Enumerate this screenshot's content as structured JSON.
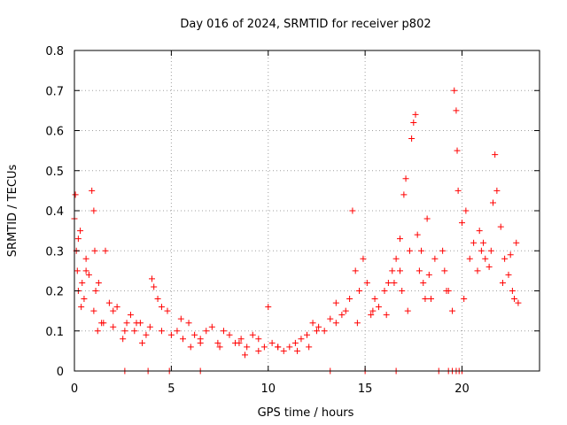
{
  "chart_data": {
    "type": "scatter",
    "title": "Day 016 of 2024, SRMTID for receiver p802",
    "xlabel": "GPS time / hours",
    "ylabel": "SRMTID / TECUs",
    "xlim": [
      0,
      24
    ],
    "ylim": [
      0,
      0.8
    ],
    "x_ticks": [
      0,
      5,
      10,
      15,
      20
    ],
    "x_tick_labels": [
      "0",
      "5",
      "10",
      "15",
      "20"
    ],
    "y_ticks": [
      0,
      0.1,
      0.2,
      0.3,
      0.4,
      0.5,
      0.6,
      0.7,
      0.8
    ],
    "y_tick_labels": [
      "0",
      "0.1",
      "0.2",
      "0.3",
      "0.4",
      "0.5",
      "0.6",
      "0.7",
      "0.8"
    ],
    "grid": true,
    "marker": "plus",
    "series": [
      {
        "name": "SRMTID",
        "color": "#ff0000",
        "x": [
          0.0,
          0.05,
          0.1,
          0.15,
          0.2,
          0.3,
          0.4,
          0.5,
          0.6,
          0.75,
          0.9,
          1.0,
          1.05,
          1.1,
          1.2,
          1.4,
          1.6,
          1.8,
          2.0,
          2.2,
          2.5,
          2.7,
          2.9,
          3.1,
          3.4,
          3.7,
          3.9,
          4.0,
          4.1,
          4.3,
          4.5,
          4.8,
          5.0,
          5.3,
          5.6,
          5.9,
          6.2,
          6.5,
          6.8,
          7.1,
          7.4,
          7.7,
          8.0,
          8.3,
          8.6,
          8.9,
          9.2,
          9.5,
          9.8,
          10.0,
          10.2,
          10.5,
          10.8,
          11.1,
          11.4,
          11.7,
          12.0,
          12.3,
          12.6,
          12.9,
          13.2,
          13.5,
          13.8,
          14.0,
          14.2,
          14.35,
          14.5,
          14.7,
          14.9,
          15.1,
          15.3,
          15.5,
          15.7,
          16.0,
          16.2,
          16.4,
          16.6,
          16.8,
          16.9,
          17.0,
          17.1,
          17.3,
          17.4,
          17.5,
          17.6,
          17.7,
          17.8,
          17.9,
          18.0,
          18.1,
          18.3,
          18.6,
          19.0,
          19.1,
          19.3,
          19.5,
          19.6,
          19.7,
          19.75,
          19.8,
          20.0,
          20.2,
          20.4,
          20.6,
          20.8,
          21.0,
          21.2,
          21.4,
          21.6,
          21.7,
          21.8,
          22.0,
          22.2,
          22.4,
          22.6,
          22.8,
          22.9,
          0.2,
          0.6,
          1.0,
          1.5,
          2.0,
          2.6,
          3.5,
          4.5,
          5.5,
          6.5,
          7.5,
          8.5,
          9.5,
          10.5,
          11.5,
          12.5,
          13.5,
          14.6,
          15.4,
          16.1,
          16.8,
          17.2,
          18.2,
          19.2,
          20.1,
          20.9,
          21.5,
          22.1,
          22.7,
          0.35,
          1.25,
          3.2,
          6.0,
          8.8,
          12.1,
          16.5,
          18.4,
          21.1,
          22.5,
          2.6,
          3.8,
          4.9,
          6.5,
          13.2,
          15.0,
          16.6,
          18.8,
          19.3,
          19.5,
          19.7,
          19.85,
          20.0
        ],
        "y": [
          0.38,
          0.44,
          0.3,
          0.25,
          0.2,
          0.35,
          0.22,
          0.18,
          0.28,
          0.24,
          0.45,
          0.4,
          0.3,
          0.2,
          0.1,
          0.12,
          0.3,
          0.17,
          0.15,
          0.16,
          0.08,
          0.12,
          0.14,
          0.1,
          0.12,
          0.09,
          0.11,
          0.23,
          0.21,
          0.18,
          0.16,
          0.15,
          0.09,
          0.1,
          0.08,
          0.12,
          0.09,
          0.08,
          0.1,
          0.11,
          0.07,
          0.1,
          0.09,
          0.07,
          0.08,
          0.06,
          0.09,
          0.08,
          0.06,
          0.16,
          0.07,
          0.06,
          0.05,
          0.06,
          0.07,
          0.08,
          0.09,
          0.12,
          0.11,
          0.1,
          0.13,
          0.12,
          0.14,
          0.15,
          0.18,
          0.4,
          0.25,
          0.2,
          0.28,
          0.22,
          0.14,
          0.18,
          0.16,
          0.2,
          0.22,
          0.25,
          0.28,
          0.33,
          0.2,
          0.44,
          0.48,
          0.3,
          0.58,
          0.62,
          0.64,
          0.34,
          0.25,
          0.3,
          0.22,
          0.18,
          0.24,
          0.28,
          0.3,
          0.25,
          0.2,
          0.15,
          0.7,
          0.65,
          0.55,
          0.45,
          0.37,
          0.4,
          0.28,
          0.32,
          0.25,
          0.3,
          0.28,
          0.26,
          0.42,
          0.54,
          0.45,
          0.36,
          0.28,
          0.24,
          0.2,
          0.32,
          0.17,
          0.33,
          0.25,
          0.15,
          0.12,
          0.11,
          0.1,
          0.07,
          0.1,
          0.13,
          0.07,
          0.06,
          0.07,
          0.05,
          0.06,
          0.05,
          0.1,
          0.17,
          0.12,
          0.15,
          0.14,
          0.25,
          0.15,
          0.38,
          0.2,
          0.18,
          0.35,
          0.3,
          0.22,
          0.18,
          0.16,
          0.22,
          0.12,
          0.06,
          0.04,
          0.06,
          0.22,
          0.18,
          0.32,
          0.29,
          0.0,
          0.0,
          0.0,
          0.0,
          0.0,
          0.0,
          0.0,
          0.0,
          0.0,
          0.0,
          0.0,
          0.0,
          0.0
        ]
      }
    ]
  }
}
